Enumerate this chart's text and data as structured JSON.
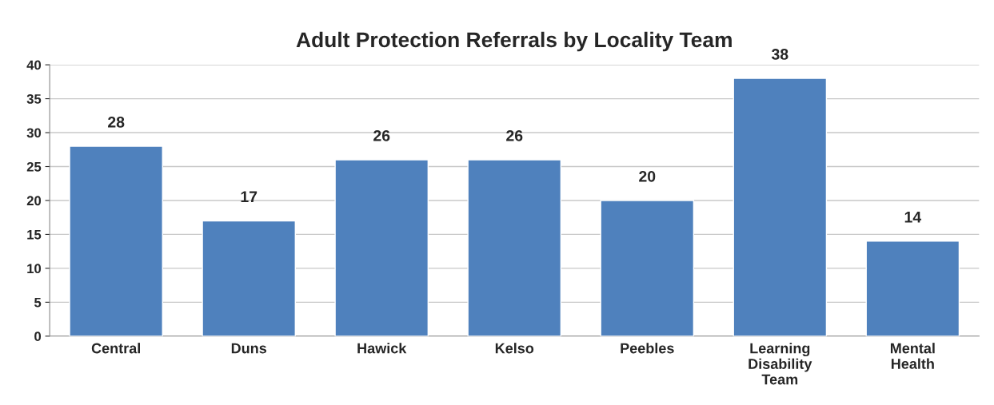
{
  "chart_data": {
    "type": "bar",
    "title": "Adult Protection Referrals by Locality Team",
    "categories": [
      "Central",
      "Duns",
      "Hawick",
      "Kelso",
      "Peebles",
      "Learning Disability Team",
      "Mental Health"
    ],
    "values": [
      28,
      17,
      26,
      26,
      20,
      38,
      14
    ],
    "color": "#4f81bd",
    "ylim": [
      0,
      40
    ],
    "yticks": [
      0,
      5,
      10,
      15,
      20,
      25,
      30,
      35,
      40
    ],
    "grid": "y",
    "data_labels": true,
    "legend": false
  }
}
